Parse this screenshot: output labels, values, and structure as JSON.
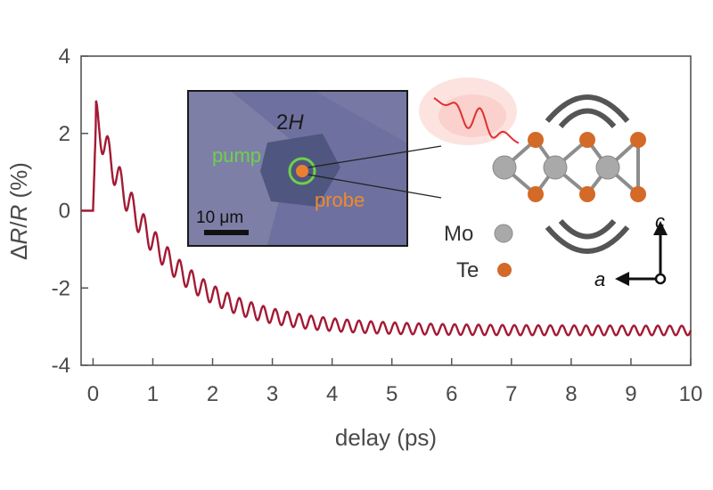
{
  "chart_data": {
    "type": "line",
    "xlabel": "delay (ps)",
    "ylabel_parts": {
      "delta": "Δ",
      "r1": "R",
      "slash": "/",
      "r2": "R",
      "unit": " (%)"
    },
    "xlim": [
      -0.2,
      10
    ],
    "ylim": [
      -4,
      4
    ],
    "xticks": [
      0,
      1,
      2,
      3,
      4,
      5,
      6,
      7,
      8,
      9,
      10
    ],
    "xtick_labels": [
      "0",
      "1",
      "2",
      "3",
      "4",
      "5",
      "6",
      "7",
      "8",
      "9",
      "10"
    ],
    "yticks": [
      -4,
      -2,
      0,
      2,
      4
    ],
    "ytick_labels": [
      "-4",
      "-2",
      "0",
      "2",
      "4"
    ],
    "grid": false,
    "line_color": "#a31a34",
    "series": [
      {
        "signal": {
          "t_before": [
            -0.2,
            0.0
          ],
          "value_before": 0.0,
          "baseline": -3.1,
          "peak": 2.4,
          "decay_tau_ps": 1.1,
          "oscillation_period_ps": 0.2,
          "oscillation_amplitude_start": 0.45,
          "oscillation_amplitude_end": 0.12
        }
      }
    ]
  },
  "inset": {
    "phase_label": "2",
    "phase_label_italic": "H",
    "pump_label": "pump",
    "probe_label": "probe",
    "scalebar_label": "10 μm",
    "pump_color": "#6fd04a",
    "probe_color": "#f08a2a",
    "image_bg": "#6c6f9e"
  },
  "crystal": {
    "mo_label": "Mo",
    "te_label": "Te",
    "mo_color": "#a9a9a9",
    "te_color": "#d36a28",
    "axis_c": "c",
    "axis_a": "a",
    "wave_color": "#e03030"
  }
}
